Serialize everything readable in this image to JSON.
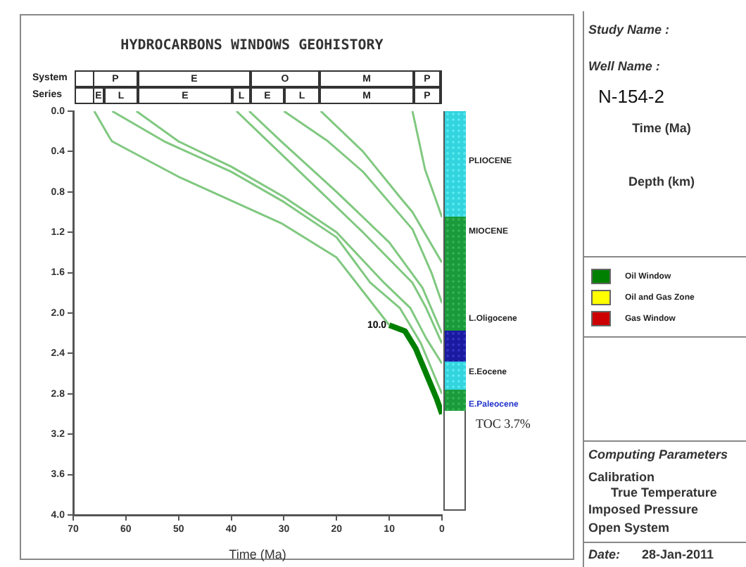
{
  "chart_data": {
    "type": "line",
    "title": "HYDROCARBONS WINDOWS GEOHISTORY",
    "xlabel": "Time (Ma)",
    "xlim": [
      70,
      0
    ],
    "xticks": [
      70,
      60,
      50,
      40,
      30,
      20,
      10,
      0
    ],
    "ylim": [
      4,
      0
    ],
    "yticks": [
      {
        "value": 0,
        "label": "0.0"
      },
      0.4,
      0.8,
      1.2,
      1.6,
      {
        "value": 2,
        "label": "2.0"
      },
      2.4,
      2.8,
      3.2,
      3.6,
      {
        "value": 4,
        "label": "4.0"
      }
    ],
    "grid": false,
    "legend": "right",
    "marker": "none",
    "line_style": "solid",
    "series": [
      {
        "color": "#80c880",
        "x": [
          66,
          63,
          62.6,
          50,
          30.5,
          20,
          10
        ],
        "values": [
          0,
          0.27,
          0.3,
          0.65,
          1.11,
          1.45,
          2.12
        ]
      },
      {
        "color": "#80c880",
        "x": [
          62.6,
          52.7,
          40,
          30,
          20,
          13.6,
          8,
          4,
          0
        ],
        "values": [
          0,
          0.3,
          0.6,
          0.9,
          1.25,
          1.7,
          1.95,
          2.3,
          2.8
        ]
      },
      {
        "color": "#80c880",
        "x": [
          58,
          50,
          40,
          30,
          20,
          11,
          6,
          3,
          0
        ],
        "values": [
          0,
          0.3,
          0.55,
          0.85,
          1.2,
          1.7,
          1.95,
          2.25,
          2.5
        ]
      },
      {
        "color": "#80c880",
        "x": [
          39,
          33,
          25,
          15,
          5.6,
          3,
          0
        ],
        "values": [
          0,
          0.3,
          0.7,
          1.2,
          1.7,
          1.95,
          2.3
        ]
      },
      {
        "color": "#80c880",
        "x": [
          36.6,
          30.5,
          20,
          10,
          3.7,
          0
        ],
        "values": [
          0,
          0.3,
          0.8,
          1.3,
          1.75,
          2.2
        ]
      },
      {
        "color": "#80c880",
        "x": [
          30,
          21.6,
          15,
          5.6,
          2,
          0
        ],
        "values": [
          0,
          0.3,
          0.6,
          1.17,
          1.6,
          1.9
        ]
      },
      {
        "color": "#80c880",
        "x": [
          23,
          15,
          8,
          5.6,
          0
        ],
        "values": [
          0,
          0.4,
          0.85,
          1,
          1.5
        ]
      },
      {
        "color": "#80c880",
        "x": [
          5.6,
          3.2,
          1,
          0
        ],
        "values": [
          0,
          0.58,
          0.9,
          1.05
        ]
      },
      {
        "name": "Oil Window",
        "color": "#008000",
        "x": [
          10,
          7,
          5,
          3,
          1,
          0
        ],
        "values": [
          2.12,
          2.18,
          2.35,
          2.6,
          2.85,
          3
        ]
      },
      {
        "name": "Oil and Gas Zone",
        "color": "#ffff00"
      },
      {
        "name": "Gas Window",
        "color": "#cc0000"
      }
    ],
    "annotations": [
      "System",
      "Series",
      "P",
      "E",
      "O",
      "M",
      "P",
      "E",
      "L",
      "E",
      "L",
      "E",
      "L",
      "M",
      "P",
      "PLIOCENE",
      "MIOCENE",
      "L.Oligocene",
      "E.Eocene",
      "E.Paleocene",
      "TOC 3.7%",
      "Study Name :",
      "Well Name :",
      "N-154-2",
      "Time (Ma)",
      "Depth (km)",
      "Computing Parameters",
      "Calibration",
      "True Temperature",
      "Imposed Pressure",
      "Open System",
      "Date:",
      "28-Jan-2011",
      {
        "text": "10.0",
        "x": 10,
        "y": 2.12
      }
    ]
  }
}
